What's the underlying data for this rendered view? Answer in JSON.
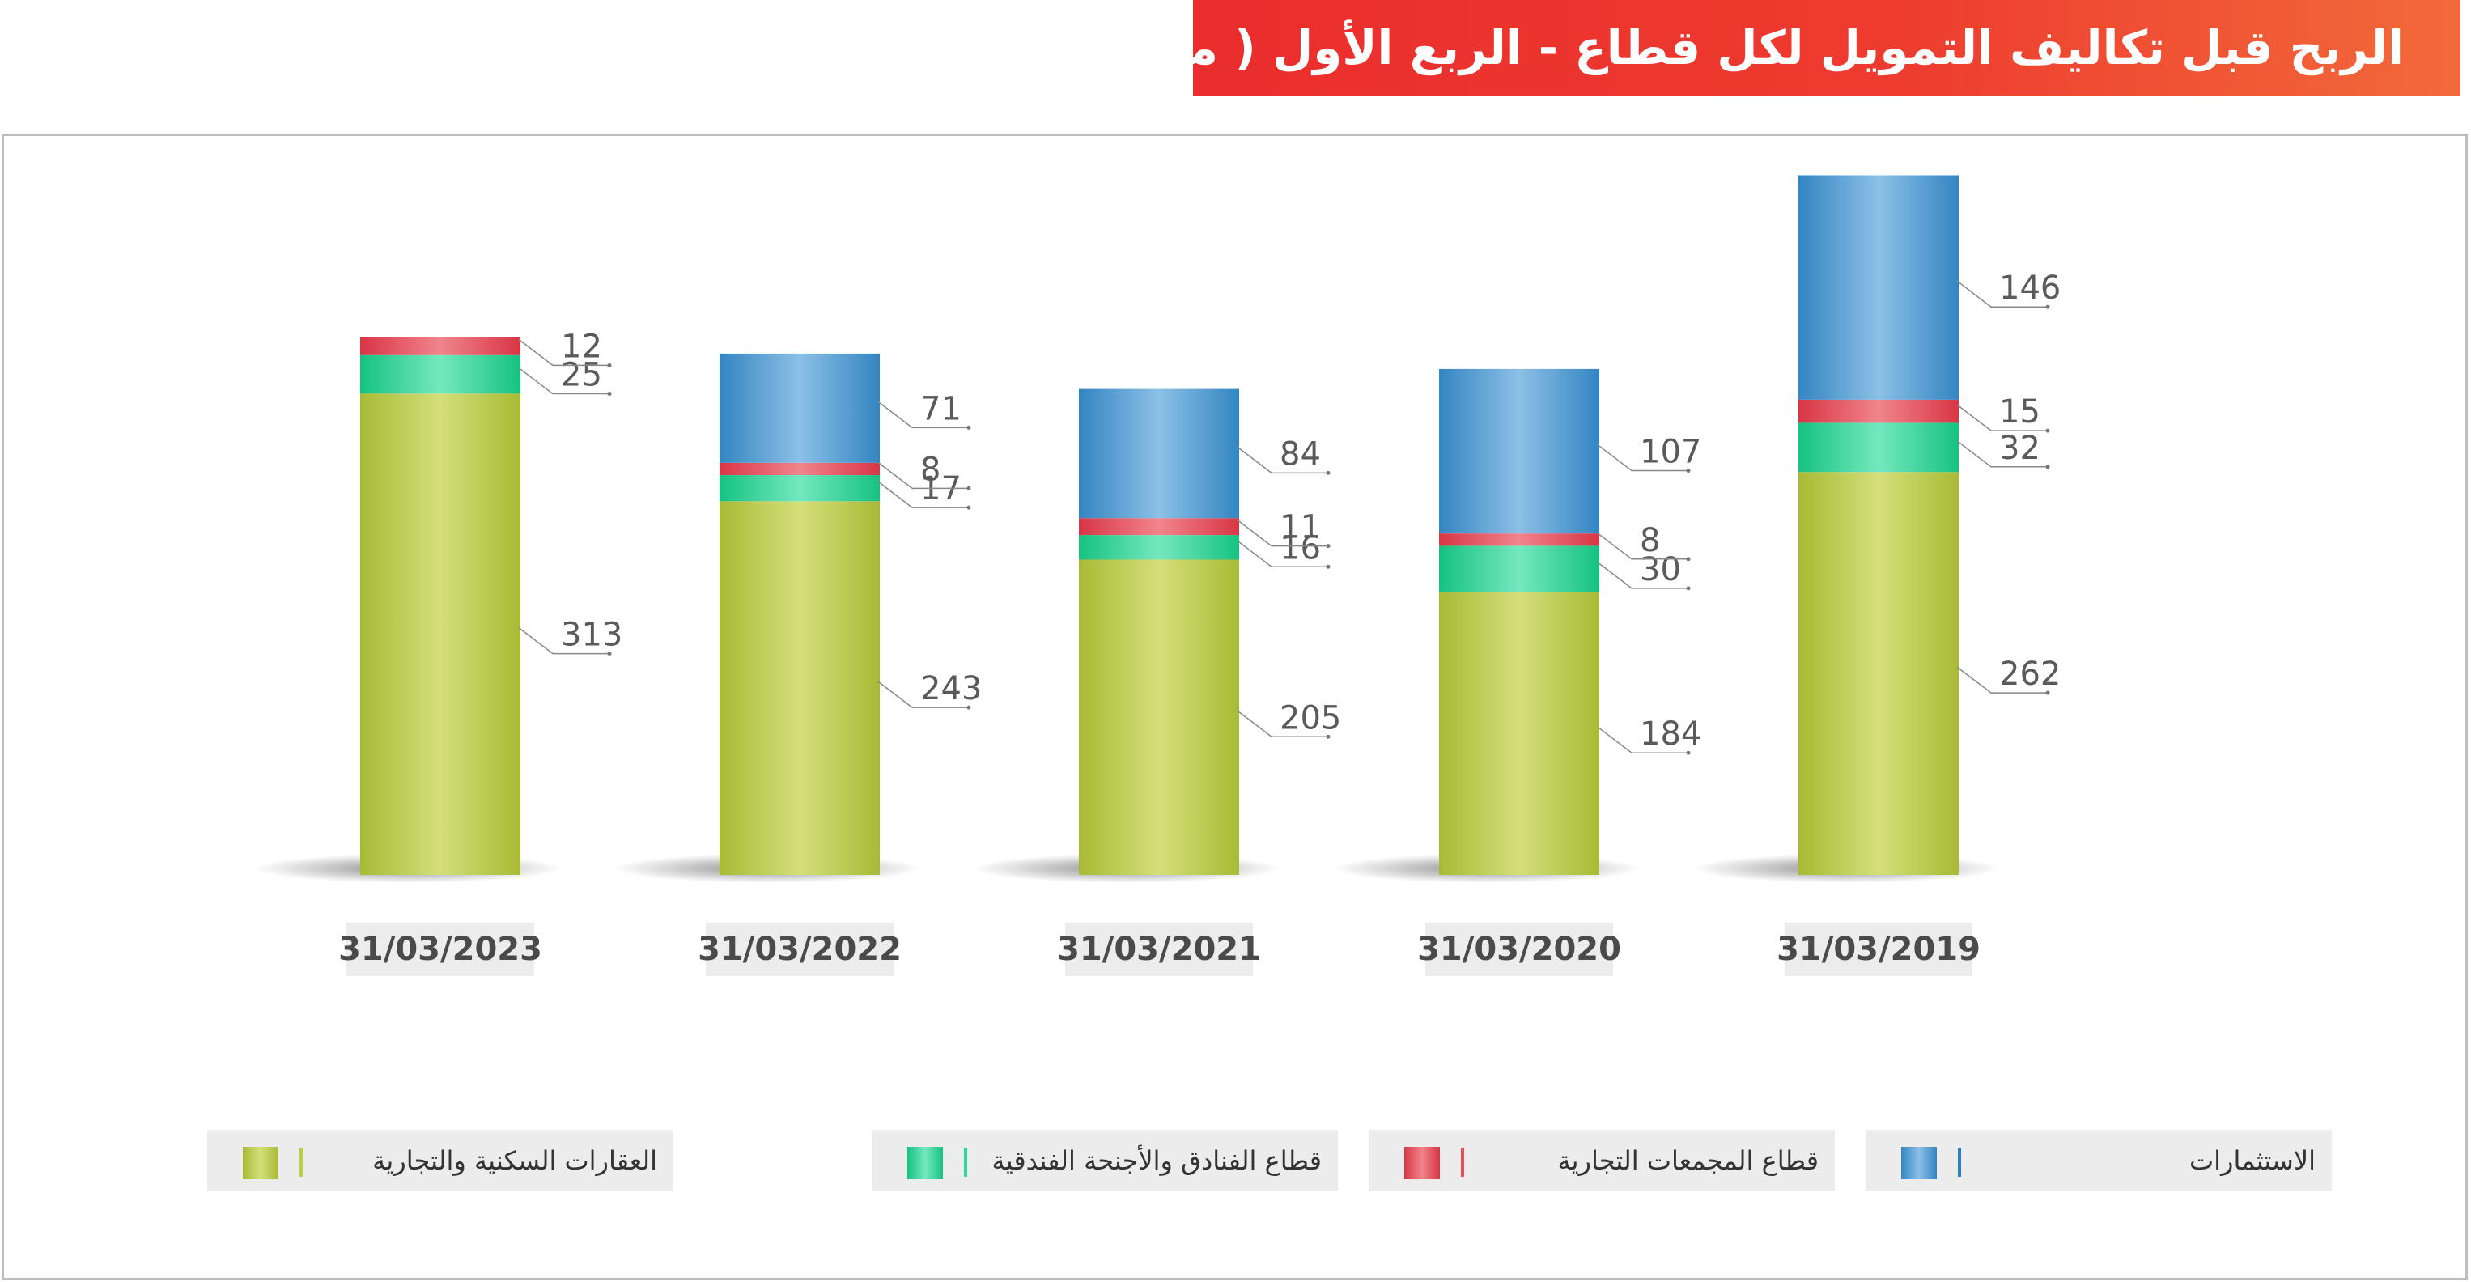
{
  "title": "الربح قبل تكاليف التمويل لكل قطاع - الربع الأول ( مليون رق )",
  "legend": [
    {
      "label": "العقارات السكنية والتجارية",
      "color": "#bccd4a"
    },
    {
      "label": "قطاع الفنادق والأجنحة الفندقية",
      "color": "#2fd79a"
    },
    {
      "label": "قطاع المجمعات التجارية",
      "color": "#e84d5a"
    },
    {
      "label": "الاستثمارات",
      "color": "#4a9bd1"
    }
  ],
  "chart_data": {
    "type": "bar",
    "stacked": true,
    "categories": [
      "31/03/2023",
      "31/03/2022",
      "31/03/2021",
      "31/03/2020",
      "31/03/2019"
    ],
    "series": [
      {
        "name": "العقارات السكنية والتجارية",
        "values": [
          313,
          243,
          205,
          184,
          262
        ],
        "color": "#bccd4a"
      },
      {
        "name": "قطاع الفنادق والأجنحة الفندقية",
        "values": [
          25,
          17,
          16,
          30,
          32
        ],
        "color": "#2fd79a"
      },
      {
        "name": "قطاع المجمعات التجارية",
        "values": [
          12,
          8,
          11,
          8,
          15
        ],
        "color": "#e84d5a"
      },
      {
        "name": "الاستثمارات",
        "values": [
          0,
          71,
          84,
          107,
          146
        ],
        "color": "#4a9bd1"
      }
    ],
    "axes_visible": false,
    "grid": false,
    "legend_position": "bottom"
  },
  "palette": {
    "title_bg": "#ee3b2f",
    "date_bg": "#ececec",
    "legend_bg": "#ececec"
  }
}
